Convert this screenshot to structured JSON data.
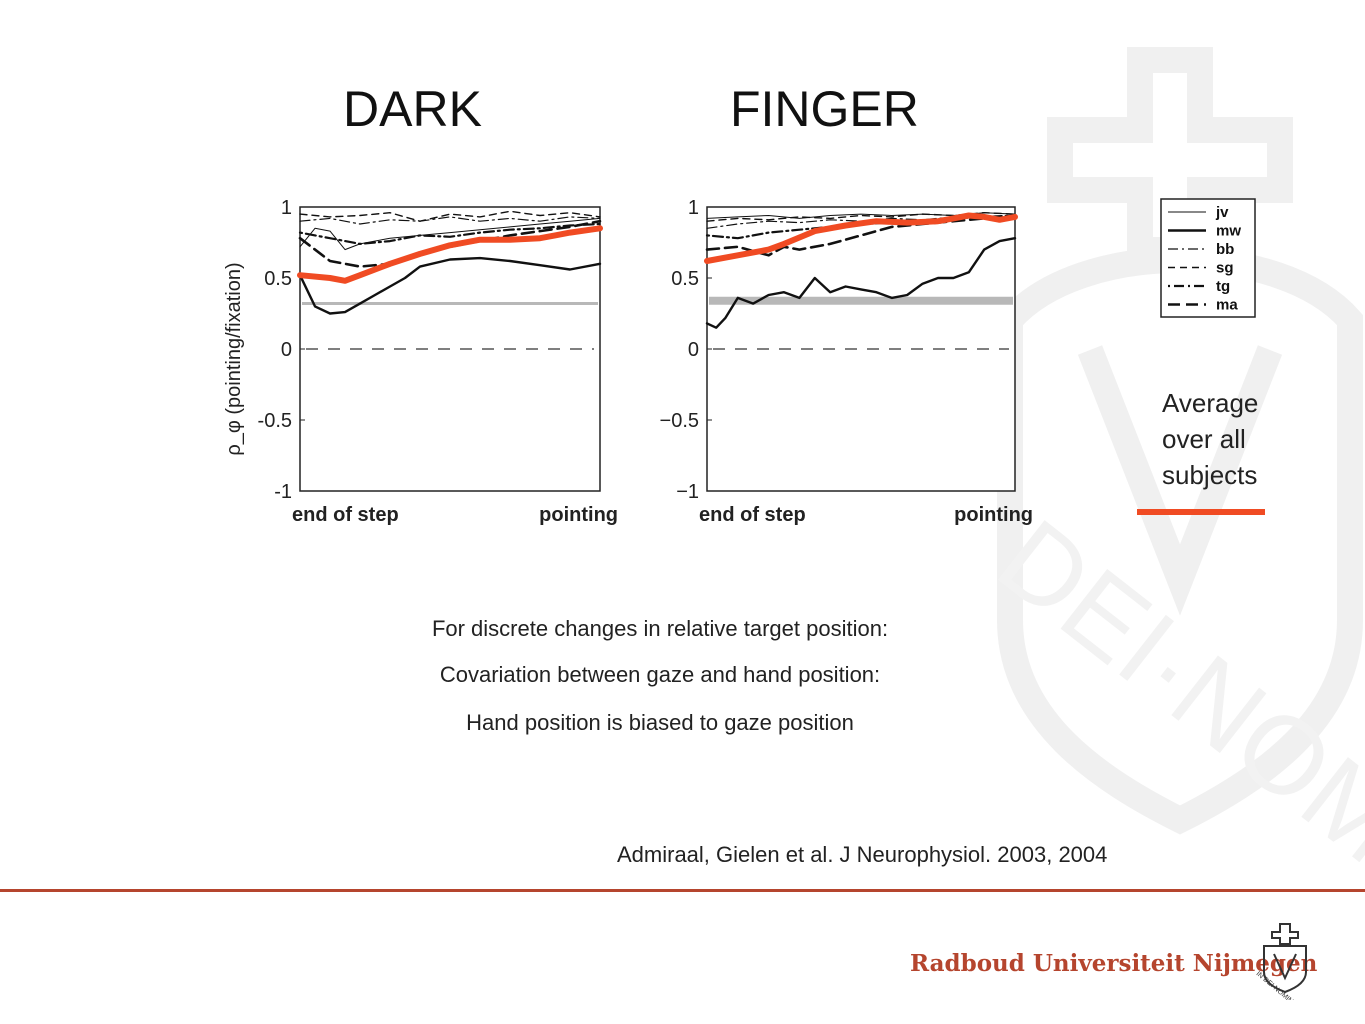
{
  "slide": {
    "heading_left": "DARK",
    "heading_right": "FINGER",
    "note_lines": [
      "Average",
      "over all",
      "subjects"
    ],
    "body_lines": [
      "For discrete changes in relative target position:",
      "Covariation between gaze and hand position:",
      "Hand position is biased to gaze position"
    ],
    "citation": "Admiraal, Gielen et al. J Neurophysiol. 2003, 2004",
    "footer_brand": "Radboud Universiteit Nijmegen",
    "seal_text": "IN DEI NOMINE FELICITER"
  },
  "colors": {
    "average": "#f04b23",
    "rule": "#b5452e",
    "brand": "#b5452e",
    "threshold": "#b8b8b8"
  },
  "chart_data": [
    {
      "type": "line",
      "name": "DARK",
      "ylabel": "ρ_φ (pointing/fixation)",
      "yticks": [
        "1",
        "0.5",
        "0",
        "-0.5",
        "-1"
      ],
      "ylim": [
        -1,
        1
      ],
      "xlim": [
        0,
        1
      ],
      "x_tick_labels": [
        "end of step",
        "pointing"
      ],
      "zero_reference": 0,
      "threshold": 0.32,
      "series": [
        {
          "name": "jv",
          "style": "thin",
          "x": [
            0,
            0.05,
            0.1,
            0.15,
            0.2,
            0.3,
            0.4,
            0.5,
            0.6,
            0.7,
            0.8,
            0.9,
            1.0
          ],
          "y": [
            0.72,
            0.85,
            0.83,
            0.7,
            0.74,
            0.78,
            0.8,
            0.82,
            0.84,
            0.86,
            0.88,
            0.9,
            0.92
          ]
        },
        {
          "name": "mw",
          "style": "solid",
          "x": [
            0,
            0.05,
            0.1,
            0.15,
            0.2,
            0.25,
            0.3,
            0.35,
            0.4,
            0.5,
            0.6,
            0.7,
            0.8,
            0.9,
            1.0
          ],
          "y": [
            0.52,
            0.3,
            0.25,
            0.26,
            0.32,
            0.38,
            0.44,
            0.5,
            0.58,
            0.63,
            0.64,
            0.62,
            0.59,
            0.56,
            0.6
          ]
        },
        {
          "name": "bb",
          "style": "dashdot",
          "x": [
            0,
            0.1,
            0.2,
            0.3,
            0.4,
            0.5,
            0.6,
            0.7,
            0.8,
            0.9,
            1.0
          ],
          "y": [
            0.9,
            0.92,
            0.88,
            0.91,
            0.9,
            0.93,
            0.9,
            0.92,
            0.9,
            0.93,
            0.92
          ]
        },
        {
          "name": "sg",
          "style": "dashed",
          "x": [
            0,
            0.1,
            0.2,
            0.3,
            0.4,
            0.5,
            0.6,
            0.7,
            0.8,
            0.9,
            1.0
          ],
          "y": [
            0.95,
            0.93,
            0.94,
            0.96,
            0.9,
            0.95,
            0.93,
            0.97,
            0.94,
            0.96,
            0.93
          ]
        },
        {
          "name": "tg",
          "style": "dotdash",
          "x": [
            0,
            0.1,
            0.2,
            0.3,
            0.4,
            0.5,
            0.6,
            0.7,
            0.8,
            0.9,
            1.0
          ],
          "y": [
            0.82,
            0.78,
            0.74,
            0.76,
            0.8,
            0.79,
            0.82,
            0.84,
            0.85,
            0.87,
            0.88
          ]
        },
        {
          "name": "ma",
          "style": "longdash",
          "x": [
            0,
            0.1,
            0.2,
            0.3,
            0.4,
            0.5,
            0.6,
            0.7,
            0.8,
            0.9,
            1.0
          ],
          "y": [
            0.78,
            0.62,
            0.58,
            0.6,
            0.68,
            0.72,
            0.76,
            0.8,
            0.83,
            0.86,
            0.9
          ]
        },
        {
          "name": "average",
          "style": "average",
          "x": [
            0,
            0.1,
            0.15,
            0.2,
            0.3,
            0.4,
            0.5,
            0.6,
            0.7,
            0.8,
            0.85,
            0.9,
            1.0
          ],
          "y": [
            0.52,
            0.5,
            0.48,
            0.52,
            0.6,
            0.67,
            0.73,
            0.77,
            0.77,
            0.78,
            0.8,
            0.82,
            0.85
          ]
        }
      ]
    },
    {
      "type": "line",
      "name": "FINGER",
      "yticks": [
        "1",
        "0.5",
        "0",
        "−0.5",
        "−1"
      ],
      "ylim": [
        -1,
        1
      ],
      "xlim": [
        0,
        1
      ],
      "x_tick_labels": [
        "end of step",
        "pointing"
      ],
      "zero_reference": 0,
      "threshold": 0.34,
      "series": [
        {
          "name": "jv",
          "style": "thin",
          "x": [
            0,
            0.1,
            0.2,
            0.3,
            0.4,
            0.5,
            0.6,
            0.7,
            0.8,
            0.9,
            1.0
          ],
          "y": [
            0.92,
            0.93,
            0.94,
            0.92,
            0.94,
            0.95,
            0.94,
            0.95,
            0.94,
            0.96,
            0.95
          ]
        },
        {
          "name": "mw",
          "style": "solid",
          "x": [
            0,
            0.03,
            0.06,
            0.1,
            0.15,
            0.2,
            0.25,
            0.3,
            0.35,
            0.4,
            0.45,
            0.5,
            0.55,
            0.6,
            0.65,
            0.7,
            0.75,
            0.8,
            0.85,
            0.9,
            0.95,
            1.0
          ],
          "y": [
            0.18,
            0.15,
            0.22,
            0.36,
            0.32,
            0.38,
            0.4,
            0.36,
            0.5,
            0.4,
            0.44,
            0.42,
            0.4,
            0.36,
            0.38,
            0.46,
            0.5,
            0.5,
            0.54,
            0.7,
            0.76,
            0.78
          ]
        },
        {
          "name": "bb",
          "style": "dashdot",
          "x": [
            0,
            0.1,
            0.2,
            0.3,
            0.4,
            0.5,
            0.6,
            0.7,
            0.8,
            0.9,
            1.0
          ],
          "y": [
            0.85,
            0.88,
            0.9,
            0.89,
            0.91,
            0.9,
            0.92,
            0.91,
            0.93,
            0.92,
            0.94
          ]
        },
        {
          "name": "sg",
          "style": "dashed",
          "x": [
            0,
            0.1,
            0.2,
            0.3,
            0.4,
            0.5,
            0.6,
            0.7,
            0.8,
            0.9,
            1.0
          ],
          "y": [
            0.9,
            0.92,
            0.91,
            0.93,
            0.92,
            0.94,
            0.93,
            0.95,
            0.94,
            0.96,
            0.95
          ]
        },
        {
          "name": "tg",
          "style": "dotdash",
          "x": [
            0,
            0.1,
            0.2,
            0.3,
            0.4,
            0.5,
            0.6,
            0.7,
            0.8,
            0.9,
            1.0
          ],
          "y": [
            0.8,
            0.78,
            0.82,
            0.84,
            0.86,
            0.88,
            0.89,
            0.9,
            0.92,
            0.93,
            0.94
          ]
        },
        {
          "name": "ma",
          "style": "longdash",
          "x": [
            0,
            0.1,
            0.2,
            0.25,
            0.3,
            0.4,
            0.5,
            0.6,
            0.7,
            0.8,
            0.9,
            1.0
          ],
          "y": [
            0.7,
            0.72,
            0.66,
            0.72,
            0.7,
            0.74,
            0.8,
            0.86,
            0.88,
            0.9,
            0.92,
            0.94
          ]
        },
        {
          "name": "average",
          "style": "average",
          "x": [
            0,
            0.1,
            0.2,
            0.25,
            0.35,
            0.45,
            0.55,
            0.65,
            0.75,
            0.8,
            0.85,
            0.9,
            0.95,
            1.0
          ],
          "y": [
            0.62,
            0.66,
            0.7,
            0.74,
            0.83,
            0.87,
            0.9,
            0.89,
            0.9,
            0.92,
            0.94,
            0.93,
            0.91,
            0.93
          ]
        }
      ]
    }
  ],
  "legend": {
    "entries": [
      {
        "label": "jv",
        "style": "thin"
      },
      {
        "label": "mw",
        "style": "solid"
      },
      {
        "label": "bb",
        "style": "dashdot"
      },
      {
        "label": "sg",
        "style": "dashed"
      },
      {
        "label": "tg",
        "style": "dotdash"
      },
      {
        "label": "ma",
        "style": "longdash"
      }
    ]
  }
}
